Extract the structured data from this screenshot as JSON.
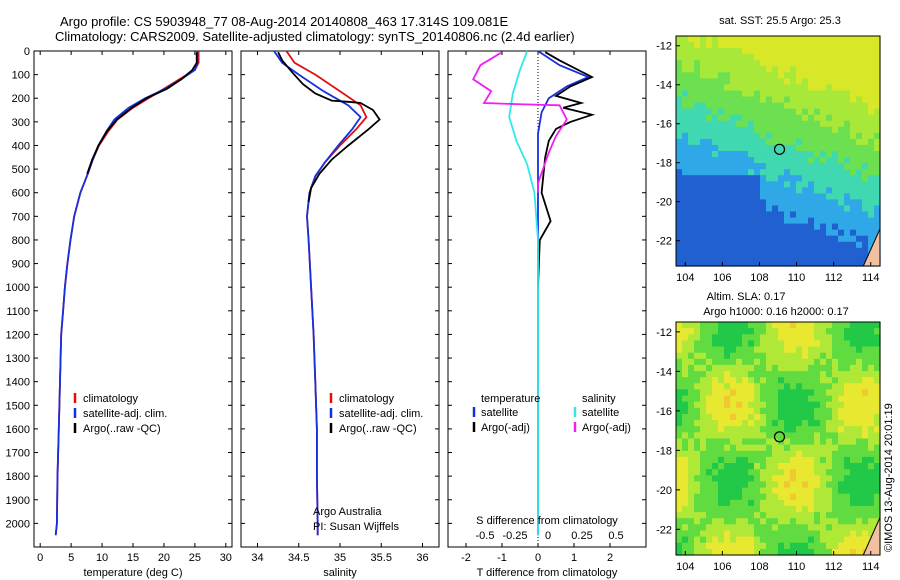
{
  "header": {
    "line1": "Argo profile: CS 5903948_77 08-Aug-2014 20140808_463 17.314S 109.081E",
    "line2": "Climatology: CARS2009. Satellite-adjusted climatology: synTS_20140806.nc (2.4d earlier)"
  },
  "map_top_title": "sat. SST: 25.5 Argo: 25.3",
  "map_bottom_title": {
    "line1": "Altim. SLA: 0.17",
    "line2": "Argo h1000: 0.16 h2000: 0.17"
  },
  "credit": "Argo Australia",
  "pi": "PI: Susan Wijffels",
  "imos_stamp": "©IMOS 13-Aug-2014 20:01:19",
  "colors": {
    "climatology": "#e01010",
    "satellite": "#1530e0",
    "argo": "#000000",
    "sat_salinity": "#30e8e8",
    "argo_salinity": "#f020f0"
  },
  "chart_data": [
    {
      "type": "line",
      "name": "temperature-profile",
      "xlabel": "temperature (deg C)",
      "xlim": [
        -1,
        31
      ],
      "ylim": [
        2100,
        0
      ],
      "xticks": [
        0,
        5,
        10,
        15,
        20,
        25,
        30
      ],
      "yticks": [
        0,
        100,
        200,
        300,
        400,
        500,
        600,
        700,
        800,
        900,
        1000,
        1100,
        1200,
        1300,
        1400,
        1500,
        1600,
        1700,
        1800,
        1900,
        2000
      ],
      "legend": [
        "climatology",
        "satellite-adj. clim.",
        "Argo(..raw -QC)"
      ],
      "legend_position": "lower-center",
      "series": [
        {
          "name": "climatology",
          "color": "#e01010",
          "x": [
            25.6,
            25.6,
            25.0,
            22.5,
            20.0,
            17.5,
            15.0,
            12.5,
            11.0,
            9.5,
            8.5,
            7.7,
            6.5,
            5.5,
            4.9,
            4.4,
            4.0,
            3.7,
            3.4,
            3.2,
            3.0,
            2.8,
            2.7,
            2.5
          ],
          "y": [
            0,
            50,
            80,
            120,
            160,
            200,
            240,
            290,
            340,
            400,
            460,
            520,
            600,
            700,
            800,
            900,
            1000,
            1100,
            1200,
            1400,
            1600,
            1800,
            2000,
            2050
          ]
        },
        {
          "name": "satellite-adj. clim.",
          "color": "#1530e0",
          "x": [
            25.4,
            25.4,
            25.0,
            22.8,
            20.2,
            17.0,
            14.3,
            12.0,
            10.7,
            9.4,
            8.5,
            7.7,
            6.5,
            5.5,
            4.9,
            4.4,
            4.0,
            3.7,
            3.4,
            3.2,
            3.0,
            2.8,
            2.7,
            2.5
          ],
          "y": [
            0,
            50,
            80,
            120,
            160,
            200,
            240,
            290,
            340,
            400,
            460,
            520,
            600,
            700,
            800,
            900,
            1000,
            1100,
            1200,
            1400,
            1600,
            1800,
            2000,
            2050
          ]
        },
        {
          "name": "Argo(..raw -QC)",
          "color": "#000000",
          "x": [
            25.3,
            25.3,
            24.6,
            22.8,
            20.5,
            17.2,
            14.8,
            12.4,
            10.8,
            9.4,
            8.4,
            7.6
          ],
          "y": [
            5,
            50,
            80,
            120,
            160,
            200,
            240,
            290,
            340,
            400,
            460,
            520
          ]
        }
      ]
    },
    {
      "type": "line",
      "name": "salinity-profile",
      "xlabel": "salinity",
      "xlim": [
        33.8,
        36.2
      ],
      "ylim": [
        2100,
        0
      ],
      "xticks": [
        34,
        34.5,
        35,
        35.5,
        36
      ],
      "legend": [
        "climatology",
        "satellite-adj. clim.",
        "Argo(..raw -QC)"
      ],
      "legend_position": "lower-center",
      "series": [
        {
          "name": "climatology",
          "color": "#e01010",
          "x": [
            34.35,
            34.45,
            34.7,
            35.0,
            35.25,
            35.32,
            35.2,
            35.0,
            34.82,
            34.7,
            34.63,
            34.6,
            34.62,
            34.65,
            34.68,
            34.7,
            34.72,
            34.72,
            34.73,
            34.73
          ],
          "y": [
            0,
            50,
            100,
            170,
            230,
            280,
            330,
            400,
            470,
            530,
            600,
            700,
            800,
            1000,
            1200,
            1400,
            1600,
            1800,
            2000,
            2050
          ]
        },
        {
          "name": "satellite-adj. clim.",
          "color": "#1530e0",
          "x": [
            34.2,
            34.3,
            34.5,
            34.8,
            35.1,
            35.25,
            35.15,
            34.98,
            34.82,
            34.7,
            34.63,
            34.6,
            34.62,
            34.65,
            34.68,
            34.7,
            34.72,
            34.72,
            34.73,
            34.73
          ],
          "y": [
            0,
            50,
            100,
            170,
            230,
            280,
            330,
            400,
            470,
            530,
            600,
            700,
            800,
            1000,
            1200,
            1400,
            1600,
            1800,
            2000,
            2050
          ]
        },
        {
          "name": "Argo(..raw -QC)",
          "color": "#000000",
          "x": [
            34.25,
            34.3,
            34.42,
            34.55,
            34.7,
            34.9,
            35.1,
            35.25,
            35.4,
            35.48,
            35.35,
            35.1,
            34.9,
            34.75,
            34.65,
            34.62
          ],
          "y": [
            5,
            40,
            90,
            140,
            180,
            210,
            215,
            220,
            250,
            290,
            330,
            400,
            460,
            520,
            580,
            640
          ]
        }
      ]
    },
    {
      "type": "line",
      "name": "difference-profile",
      "xlabel": "T difference from climatology",
      "x2label": "S difference from climatology",
      "xlim": [
        -2.5,
        3
      ],
      "ylim": [
        2100,
        0
      ],
      "xticks": [
        -2,
        -1,
        0,
        1,
        2
      ],
      "x2ticks": [
        "-0.5",
        "-0.25",
        "0",
        "0.25",
        "0.5"
      ],
      "legend": [
        "temperature",
        "salinity",
        "satellite",
        "Argo(-adj)",
        "satellite",
        "Argo(-adj)"
      ],
      "legend_position": "lower-center",
      "series": [
        {
          "name": "temperature satellite",
          "color": "#1530e0",
          "x": [
            0,
            0.6,
            1.4,
            0.8,
            0.3,
            0.1,
            0,
            0,
            0,
            0
          ],
          "y": [
            0,
            60,
            110,
            150,
            200,
            260,
            350,
            500,
            1000,
            2050
          ]
        },
        {
          "name": "temperature Argo(-adj)",
          "color": "#000000",
          "x": [
            0.2,
            0.6,
            1.5,
            0.9,
            0.5,
            1.2,
            0.7,
            1.5,
            0.9,
            0.5,
            0.3,
            0.2,
            0.1,
            0.35,
            0.05,
            0
          ],
          "y": [
            5,
            40,
            110,
            150,
            190,
            220,
            240,
            270,
            300,
            330,
            380,
            450,
            600,
            720,
            800,
            1000
          ]
        },
        {
          "name": "salinity satellite",
          "color": "#30e8e8",
          "x": [
            -0.3,
            -0.5,
            -0.7,
            -0.8,
            -0.6,
            -0.3,
            -0.1,
            0,
            0
          ],
          "y": [
            0,
            80,
            180,
            280,
            380,
            480,
            600,
            800,
            2050
          ]
        },
        {
          "name": "salinity Argo(-adj)",
          "color": "#f020f0",
          "x": [
            -1.0,
            -1.6,
            -1.8,
            -1.3,
            -1.5,
            -0.6,
            0.6,
            0.8,
            0.5,
            0.3,
            0,
            0
          ],
          "y": [
            5,
            60,
            120,
            170,
            220,
            225,
            230,
            290,
            360,
            430,
            560,
            600
          ]
        }
      ]
    },
    {
      "type": "heatmap",
      "name": "sst-map",
      "title": "sat. SST: 25.5 Argo: 25.3",
      "xlim": [
        103.5,
        114.5
      ],
      "ylim": [
        -23.3,
        -11.5
      ],
      "xticks": [
        104,
        106,
        108,
        110,
        112,
        114
      ],
      "yticks": [
        -12,
        -14,
        -16,
        -18,
        -20,
        -22
      ],
      "marker": {
        "lon": 109.081,
        "lat": -17.314
      }
    },
    {
      "type": "heatmap",
      "name": "sla-map",
      "title": "Altim. SLA: 0.17",
      "xlim": [
        103.5,
        114.5
      ],
      "ylim": [
        -23.3,
        -11.5
      ],
      "xticks": [
        104,
        106,
        108,
        110,
        112,
        114
      ],
      "yticks": [
        -12,
        -14,
        -16,
        -18,
        -20,
        -22
      ],
      "marker": {
        "lon": 109.081,
        "lat": -17.314
      }
    }
  ]
}
